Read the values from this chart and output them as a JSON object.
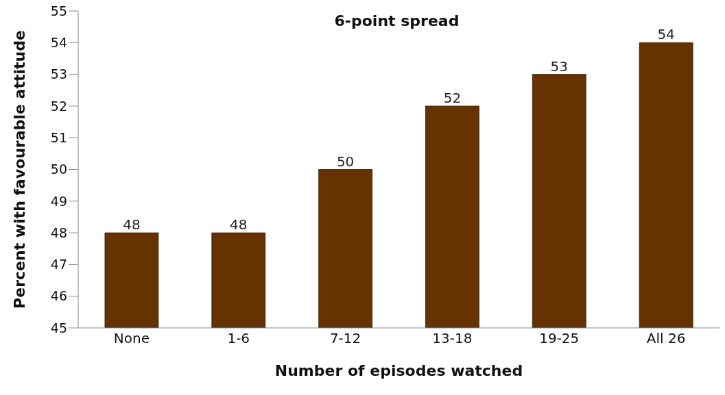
{
  "chart_data": {
    "type": "bar",
    "title": "6-point spread",
    "xlabel": "Number of episodes watched",
    "ylabel": "Percent with favourable attitude",
    "categories": [
      "None",
      "1-6",
      "7-12",
      "13-18",
      "19-25",
      "All 26"
    ],
    "values": [
      48,
      48,
      50,
      52,
      53,
      54
    ],
    "color": "#663300",
    "ylim": [
      45,
      55
    ],
    "yticks": [
      45,
      46,
      47,
      48,
      49,
      50,
      51,
      52,
      53,
      54,
      55
    ],
    "grid": false,
    "data_labels": true
  }
}
